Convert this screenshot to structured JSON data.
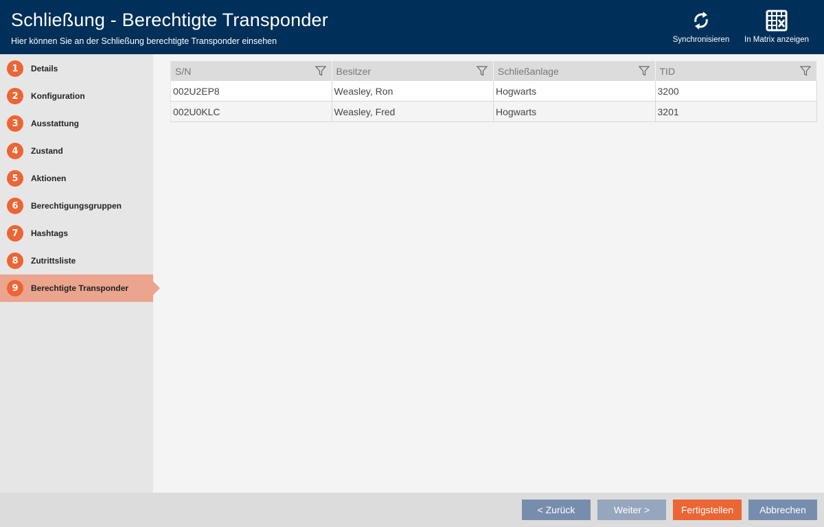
{
  "header": {
    "title": "Schließung - Berechtigte Transponder",
    "subtitle": "Hier können Sie an der Schließung berechtigte Transponder einsehen",
    "sync_label": "Synchronisieren",
    "matrix_label": "In Matrix anzeigen"
  },
  "sidebar": {
    "items": [
      {
        "num": "1",
        "label": "Details"
      },
      {
        "num": "2",
        "label": "Konfiguration"
      },
      {
        "num": "3",
        "label": "Ausstattung"
      },
      {
        "num": "4",
        "label": "Zustand"
      },
      {
        "num": "5",
        "label": "Aktionen"
      },
      {
        "num": "6",
        "label": "Berechtigungsgruppen"
      },
      {
        "num": "7",
        "label": "Hashtags"
      },
      {
        "num": "8",
        "label": "Zutrittsliste"
      },
      {
        "num": "9",
        "label": "Berechtigte Transponder",
        "active": true
      }
    ]
  },
  "table": {
    "columns": [
      "S/N",
      "Besitzer",
      "Schließanlage",
      "TID"
    ],
    "rows": [
      [
        "002U2EP8",
        "Weasley, Ron",
        "Hogwarts",
        "3200"
      ],
      [
        "002U0KLC",
        "Weasley, Fred",
        "Hogwarts",
        "3201"
      ]
    ]
  },
  "footer": {
    "back": "< Zurück",
    "next": "Weiter >",
    "finish": "Fertigstellen",
    "cancel": "Abbrechen"
  },
  "colors": {
    "header": "#002f59",
    "accent": "#ec6534",
    "active_item": "#eba48e",
    "button": "#778dae",
    "button_disabled": "#95a6be"
  }
}
